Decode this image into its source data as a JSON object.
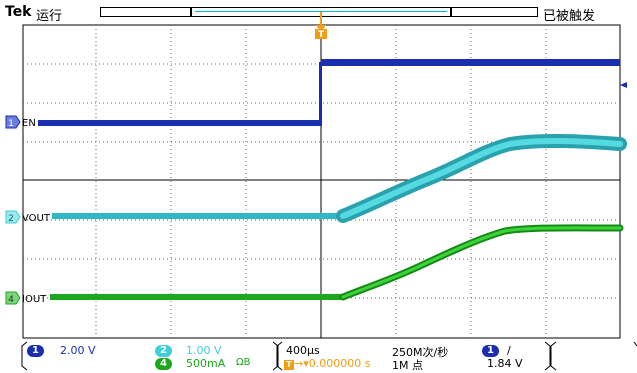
{
  "header": {
    "brand": "Tek",
    "acq_state": "运行",
    "trigger_status": "已被触发"
  },
  "markers": {
    "trigger_pos": "T",
    "trigger_time": "T"
  },
  "channels": [
    {
      "id": "1",
      "label": "EN",
      "color": "#1a2fb0"
    },
    {
      "id": "2",
      "label": "VOUT",
      "color": "#3ecfd8"
    },
    {
      "id": "4",
      "label": "IOUT",
      "color": "#1ca81c"
    }
  ],
  "readouts": {
    "ch1_scale": "2.00 V",
    "ch2_scale": "1.00 V",
    "ch4_scale": "500mA",
    "ch4_bw": "Ω",
    "ch4_bw2": "B",
    "timebase": "400μs",
    "trigger_offset": "0.000000 s",
    "sample_rate": "250M次/秒",
    "record_length": "1M 点",
    "trigger_source": "1",
    "trigger_slope": "/",
    "trigger_level": "1.84 V"
  },
  "colors": {
    "ch1": "#1a2fb0",
    "ch2": "#3ecfd8",
    "ch4": "#1ca81c",
    "trigger": "#f39c12"
  }
}
